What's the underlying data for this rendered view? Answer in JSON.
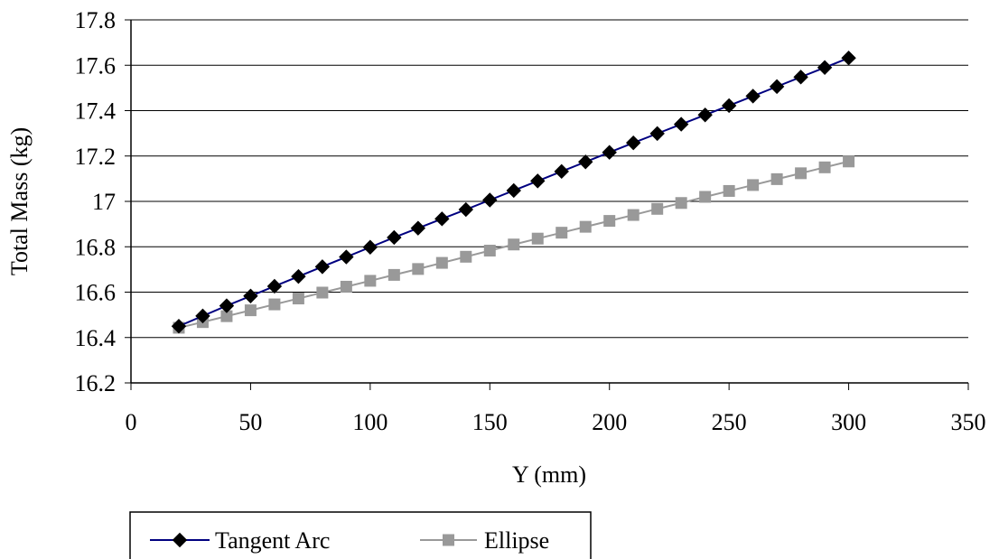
{
  "chart_data": {
    "type": "line",
    "xlabel": "Y (mm)",
    "ylabel": "Total Mass (kg)",
    "xlim": [
      0,
      350
    ],
    "ylim": [
      16.2,
      17.8
    ],
    "x_ticks": [
      "0",
      "50",
      "100",
      "150",
      "200",
      "250",
      "300",
      "350"
    ],
    "y_ticks": [
      "16.2",
      "16.4",
      "16.6",
      "16.8",
      "17",
      "17.2",
      "17.4",
      "17.6",
      "17.8"
    ],
    "grid": "horizontal",
    "legend_position": "bottom",
    "x": [
      20,
      30,
      40,
      50,
      60,
      70,
      80,
      90,
      100,
      110,
      120,
      130,
      140,
      150,
      160,
      170,
      180,
      190,
      200,
      210,
      220,
      230,
      240,
      250,
      260,
      270,
      280,
      290,
      300
    ],
    "series": [
      {
        "name": "Tangent Arc",
        "line_color": "#000080",
        "marker": "diamond",
        "marker_color": "#000000",
        "values": [
          16.45,
          16.495,
          16.54,
          16.583,
          16.626,
          16.669,
          16.712,
          16.755,
          16.798,
          16.841,
          16.882,
          16.923,
          16.964,
          17.006,
          17.048,
          17.09,
          17.132,
          17.174,
          17.216,
          17.258,
          17.299,
          17.34,
          17.381,
          17.422,
          17.464,
          17.506,
          17.548,
          17.59,
          17.632
        ]
      },
      {
        "name": "Ellipse",
        "line_color": "#999999",
        "marker": "square",
        "marker_color": "#999999",
        "values": [
          16.443,
          16.468,
          16.494,
          16.52,
          16.546,
          16.572,
          16.598,
          16.624,
          16.65,
          16.676,
          16.702,
          16.729,
          16.756,
          16.783,
          16.81,
          16.836,
          16.862,
          16.888,
          16.914,
          16.94,
          16.967,
          16.993,
          17.02,
          17.046,
          17.072,
          17.098,
          17.124,
          17.15,
          17.176
        ]
      }
    ]
  }
}
